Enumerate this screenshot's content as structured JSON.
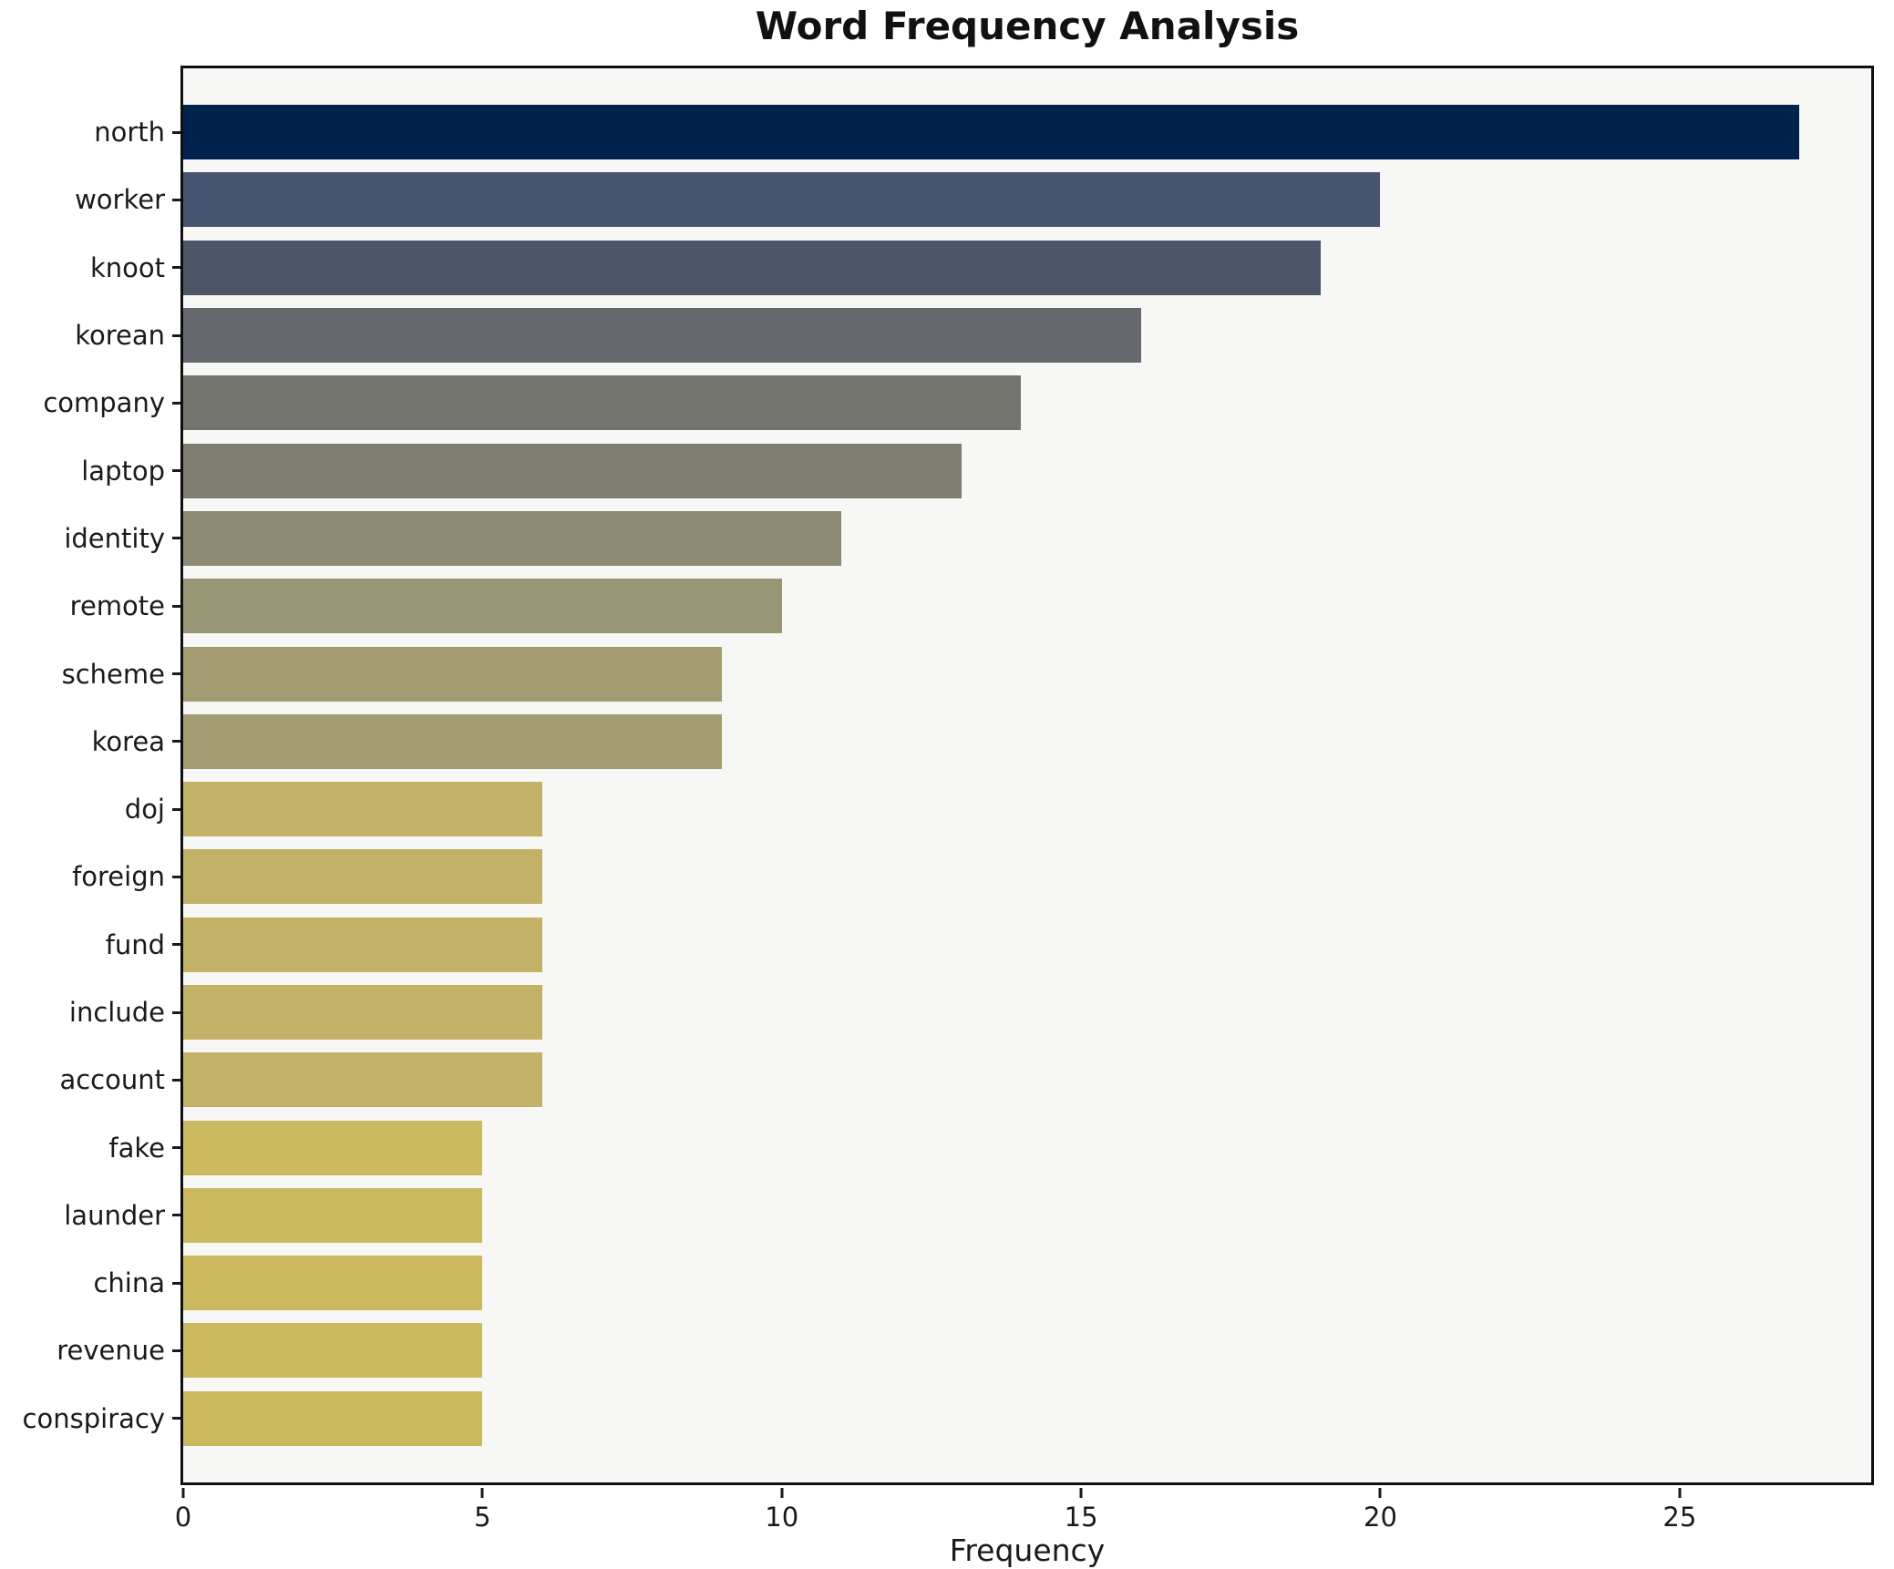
{
  "chart_data": {
    "type": "bar",
    "orientation": "horizontal",
    "title": "Word Frequency Analysis",
    "xlabel": "Frequency",
    "ylabel": "",
    "xlim": [
      0,
      28.2
    ],
    "xticks": [
      0,
      5,
      10,
      15,
      20,
      25
    ],
    "grid": false,
    "legend": false,
    "categories": [
      "north",
      "worker",
      "knoot",
      "korean",
      "company",
      "laptop",
      "identity",
      "remote",
      "scheme",
      "korea",
      "doj",
      "foreign",
      "fund",
      "include",
      "account",
      "fake",
      "launder",
      "china",
      "revenue",
      "conspiracy"
    ],
    "values": [
      27,
      20,
      19,
      16,
      14,
      13,
      11,
      10,
      9,
      9,
      6,
      6,
      6,
      6,
      6,
      5,
      5,
      5,
      5,
      5
    ],
    "bar_colors": [
      "#00234e",
      "#475470",
      "#4d5568",
      "#65686f",
      "#74746f",
      "#7e7d70",
      "#8d8973",
      "#989674",
      "#a29b72",
      "#a39c72",
      "#c2b166",
      "#c2b166",
      "#c2b166",
      "#c2b166",
      "#c2b166",
      "#cbb960",
      "#cbb960",
      "#cbb960",
      "#cbb960",
      "#cbb960"
    ]
  },
  "colors": {
    "figure_bg": "#ffffff",
    "axes_bg": "#f7f7f5",
    "spine": "#0f0f0f",
    "text": "#1a1a1a"
  }
}
